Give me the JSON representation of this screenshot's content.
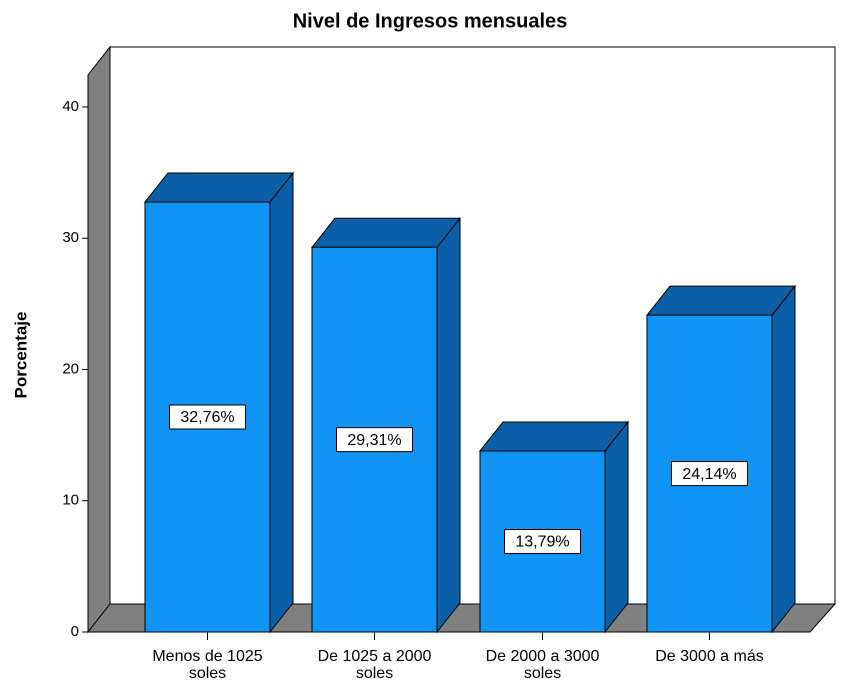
{
  "chart_data": {
    "type": "bar3d",
    "title": "Nivel de Ingresos mensuales",
    "y_label": "Porcentaje",
    "categories": [
      "Menos de 1025 soles",
      "De 1025 a 2000 soles",
      "De 2000 a 3000 soles",
      "De 3000 a más"
    ],
    "values": [
      32.76,
      29.31,
      13.79,
      24.14
    ],
    "value_labels": [
      "32,76%",
      "29,31%",
      "13,79%",
      "24,14%"
    ],
    "color": "#0f93f5",
    "shade_color": "#0b5fa6",
    "ylim": [
      0,
      42
    ],
    "yticks": [
      0,
      10,
      20,
      30,
      40
    ]
  }
}
